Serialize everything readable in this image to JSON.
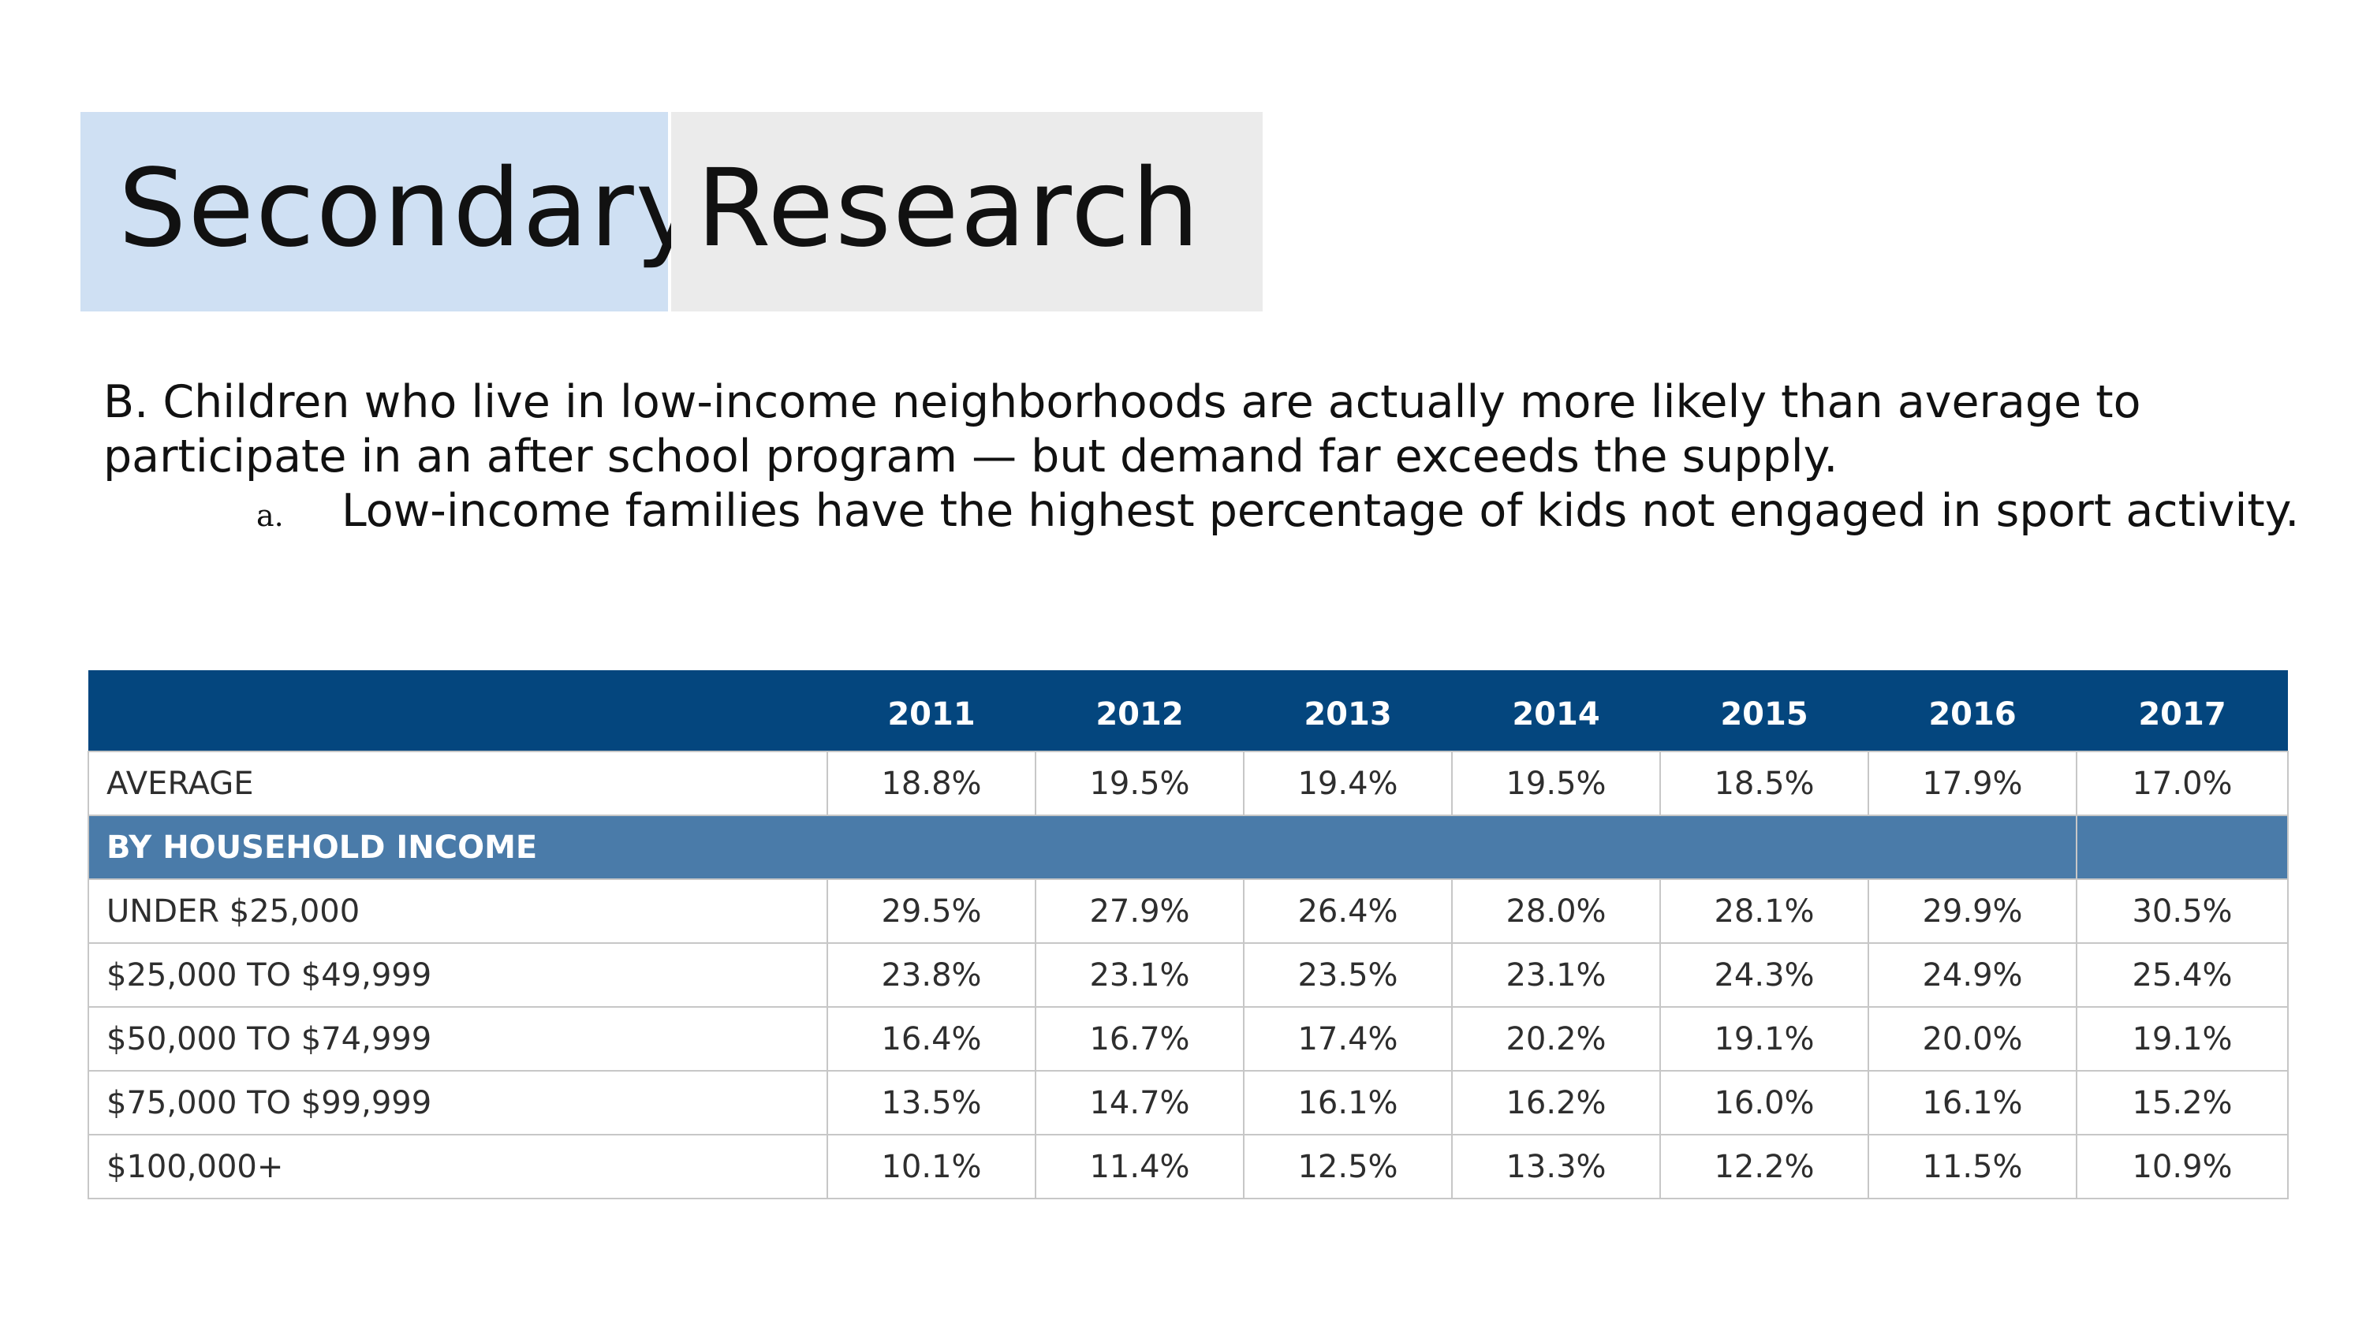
{
  "title": {
    "part1": "Secondary",
    "part2": "Research"
  },
  "body": {
    "paragraph": "B. Children who live in low-income neighborhoods are actually more likely than average to participate in an after school program — but  demand far exceeds the supply.",
    "sub_marker": "a.",
    "sub_text": "Low-income families have the highest percentage of kids not engaged in sport activity."
  },
  "colors": {
    "title_left_bg": "#cfe0f3",
    "title_right_bg": "#ebebeb",
    "table_header_bg": "#04467e",
    "section_row_bg": "#4a7ba9"
  },
  "table": {
    "headers": [
      "",
      "2011",
      "2012",
      "2013",
      "2014",
      "2015",
      "2016",
      "2017"
    ],
    "average_row": {
      "label": "AVERAGE",
      "values": [
        "18.8%",
        "19.5%",
        "19.4%",
        "19.5%",
        "18.5%",
        "17.9%",
        "17.0%"
      ]
    },
    "section_label": "BY HOUSEHOLD INCOME",
    "rows": [
      {
        "label": "UNDER $25,000",
        "values": [
          "29.5%",
          "27.9%",
          "26.4%",
          "28.0%",
          "28.1%",
          "29.9%",
          "30.5%"
        ]
      },
      {
        "label": "$25,000 TO $49,999",
        "values": [
          "23.8%",
          "23.1%",
          "23.5%",
          "23.1%",
          "24.3%",
          "24.9%",
          "25.4%"
        ]
      },
      {
        "label": "$50,000 TO $74,999",
        "values": [
          "16.4%",
          "16.7%",
          "17.4%",
          "20.2%",
          "19.1%",
          "20.0%",
          "19.1%"
        ]
      },
      {
        "label": "$75,000 TO $99,999",
        "values": [
          "13.5%",
          "14.7%",
          "16.1%",
          "16.2%",
          "16.0%",
          "16.1%",
          "15.2%"
        ]
      },
      {
        "label": "$100,000+",
        "values": [
          "10.1%",
          "11.4%",
          "12.5%",
          "13.3%",
          "12.2%",
          "11.5%",
          "10.9%"
        ]
      }
    ]
  }
}
